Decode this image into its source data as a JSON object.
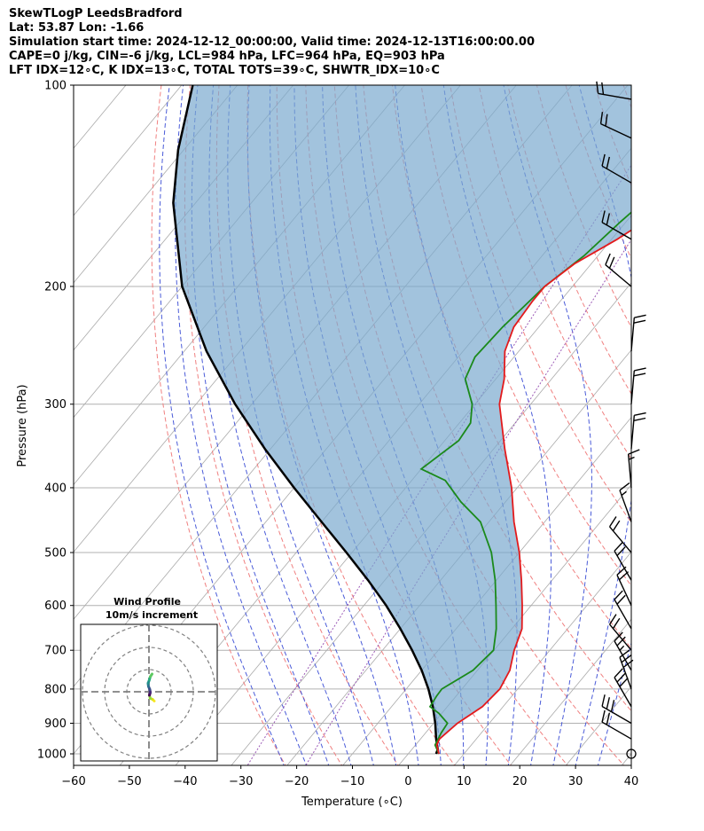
{
  "header": {
    "line1": "SkewTLogP LeedsBradford",
    "line2": "Lat: 53.87   Lon: -1.66",
    "line3": "Simulation start time: 2024-12-12_00:00:00, Valid time: 2024-12-13T16:00:00.00",
    "line4": "CAPE=0 j/kg, CIN=-6 j/kg, LCL=984 hPa, LFC=964 hPa, EQ=903 hPa",
    "line5": "LFT IDX=12∘C, K IDX=13∘C, TOTAL TOTS=39∘C, SHWTR_IDX=10∘C"
  },
  "chart_data": {
    "type": "skewt",
    "xlabel": "Temperature (∘C)",
    "ylabel": "Pressure (hPa)",
    "xlim": [
      -60,
      40
    ],
    "ylim": [
      1050,
      100
    ],
    "x_ticks": [
      "−60",
      "−50",
      "−40",
      "−30",
      "−20",
      "−10",
      "0",
      "10",
      "20",
      "30",
      "40"
    ],
    "x_tick_values": [
      -60,
      -50,
      -40,
      -30,
      -20,
      -10,
      0,
      10,
      20,
      30,
      40
    ],
    "y_ticks": [
      "1000",
      "900",
      "800",
      "700",
      "600",
      "500",
      "400",
      "300",
      "200",
      "100"
    ],
    "y_tick_values": [
      1000,
      900,
      800,
      700,
      600,
      500,
      400,
      300,
      200,
      100
    ],
    "y_scale": "log",
    "grid": true,
    "colors": {
      "temperature": "#e31a1c",
      "dewpoint": "#1b8a1b",
      "parcel": "#000000",
      "cape_fill": "#7aa9cf",
      "dry_adiabats": "#f08080",
      "moist_adiabats": "#4a5bd8",
      "isotherms": "#aaaaaa",
      "mixing_ratio": "#9b59b6"
    },
    "series": [
      {
        "key": "temperature",
        "pressure": [
          1000,
          970,
          950,
          900,
          850,
          800,
          750,
          700,
          650,
          600,
          550,
          500,
          450,
          400,
          350,
          300,
          275,
          250,
          230,
          210,
          200,
          185,
          170,
          155,
          140,
          125,
          115,
          100
        ],
        "temperature": [
          5.5,
          3.8,
          3.4,
          4.3,
          6.3,
          6.8,
          5.8,
          3.6,
          1.8,
          -1.6,
          -5.5,
          -10,
          -15.5,
          -21,
          -28,
          -35.6,
          -38.5,
          -42.5,
          -44.5,
          -45,
          -45,
          -43,
          -39,
          -35.5,
          -31.5,
          -27.5,
          -24,
          -17.8
        ]
      },
      {
        "key": "dewpoint",
        "pressure": [
          1000,
          970,
          930,
          900,
          870,
          850,
          820,
          800,
          750,
          700,
          650,
          600,
          550,
          500,
          450,
          420,
          390,
          375,
          340,
          320,
          300,
          275,
          255,
          230,
          200,
          180,
          160,
          140,
          125,
          115,
          100
        ],
        "temperature": [
          5.5,
          3.5,
          2.8,
          2.5,
          -0.5,
          -3.1,
          -3.5,
          -3.6,
          -0.8,
          -0.1,
          -2.8,
          -6.3,
          -10.2,
          -15,
          -21.5,
          -28,
          -34,
          -40,
          -37.5,
          -38,
          -40.5,
          -45.5,
          -47,
          -46.5,
          -45,
          -42.5,
          -41,
          -38.8,
          -35.5,
          -33.4,
          -28.4
        ]
      },
      {
        "key": "parcel",
        "pressure": [
          1000,
          984,
          950,
          900,
          850,
          800,
          750,
          700,
          650,
          600,
          550,
          500,
          450,
          400,
          350,
          300,
          250,
          200,
          150,
          125,
          100
        ],
        "temperature": [
          5,
          4.6,
          2.8,
          0.3,
          -2.6,
          -6,
          -10,
          -14.7,
          -20,
          -26,
          -33,
          -41,
          -50,
          -60,
          -71,
          -83,
          -96,
          -110,
          -124,
          -131,
          -138
        ]
      }
    ],
    "wind_barbs": [
      {
        "p": 1000,
        "speed_kt": 0,
        "dir": 0
      },
      {
        "p": 950,
        "speed_kt": 20,
        "dir": 300
      },
      {
        "p": 900,
        "speed_kt": 30,
        "dir": 300
      },
      {
        "p": 850,
        "speed_kt": 30,
        "dir": 330
      },
      {
        "p": 800,
        "speed_kt": 30,
        "dir": 340
      },
      {
        "p": 750,
        "speed_kt": 25,
        "dir": 330
      },
      {
        "p": 700,
        "speed_kt": 20,
        "dir": 320
      },
      {
        "p": 650,
        "speed_kt": 20,
        "dir": 330
      },
      {
        "p": 600,
        "speed_kt": 20,
        "dir": 335
      },
      {
        "p": 550,
        "speed_kt": 20,
        "dir": 330
      },
      {
        "p": 500,
        "speed_kt": 20,
        "dir": 320
      },
      {
        "p": 450,
        "speed_kt": 15,
        "dir": 340
      },
      {
        "p": 400,
        "speed_kt": 15,
        "dir": 355
      },
      {
        "p": 350,
        "speed_kt": 20,
        "dir": 5
      },
      {
        "p": 300,
        "speed_kt": 20,
        "dir": 5
      },
      {
        "p": 250,
        "speed_kt": 20,
        "dir": 5
      },
      {
        "p": 200,
        "speed_kt": 20,
        "dir": 310
      },
      {
        "p": 170,
        "speed_kt": 20,
        "dir": 300
      },
      {
        "p": 140,
        "speed_kt": 20,
        "dir": 300
      },
      {
        "p": 120,
        "speed_kt": 20,
        "dir": 295
      },
      {
        "p": 105,
        "speed_kt": 20,
        "dir": 280
      }
    ],
    "inset": {
      "title": "Wind Profile",
      "subtitle": "10m/s increment",
      "rings_ms": [
        10,
        20,
        30
      ],
      "hodograph_u": [
        2.4,
        1.6,
        0.6,
        0.2,
        0.6,
        0.4,
        -0.2,
        -0.4,
        0.2,
        0.6,
        1.4
      ],
      "hodograph_v": [
        -4.2,
        -3.4,
        -3.0,
        -1.6,
        -0.4,
        1.0,
        2.4,
        3.8,
        5.4,
        6.8,
        8.0
      ],
      "colors": [
        "#f9e721",
        "#d2e21b",
        "#8fd744",
        "#440154",
        "#472d7b",
        "#3b528b",
        "#2c728e",
        "#21918c",
        "#28ae80",
        "#5ec962",
        "#35b779"
      ]
    }
  }
}
